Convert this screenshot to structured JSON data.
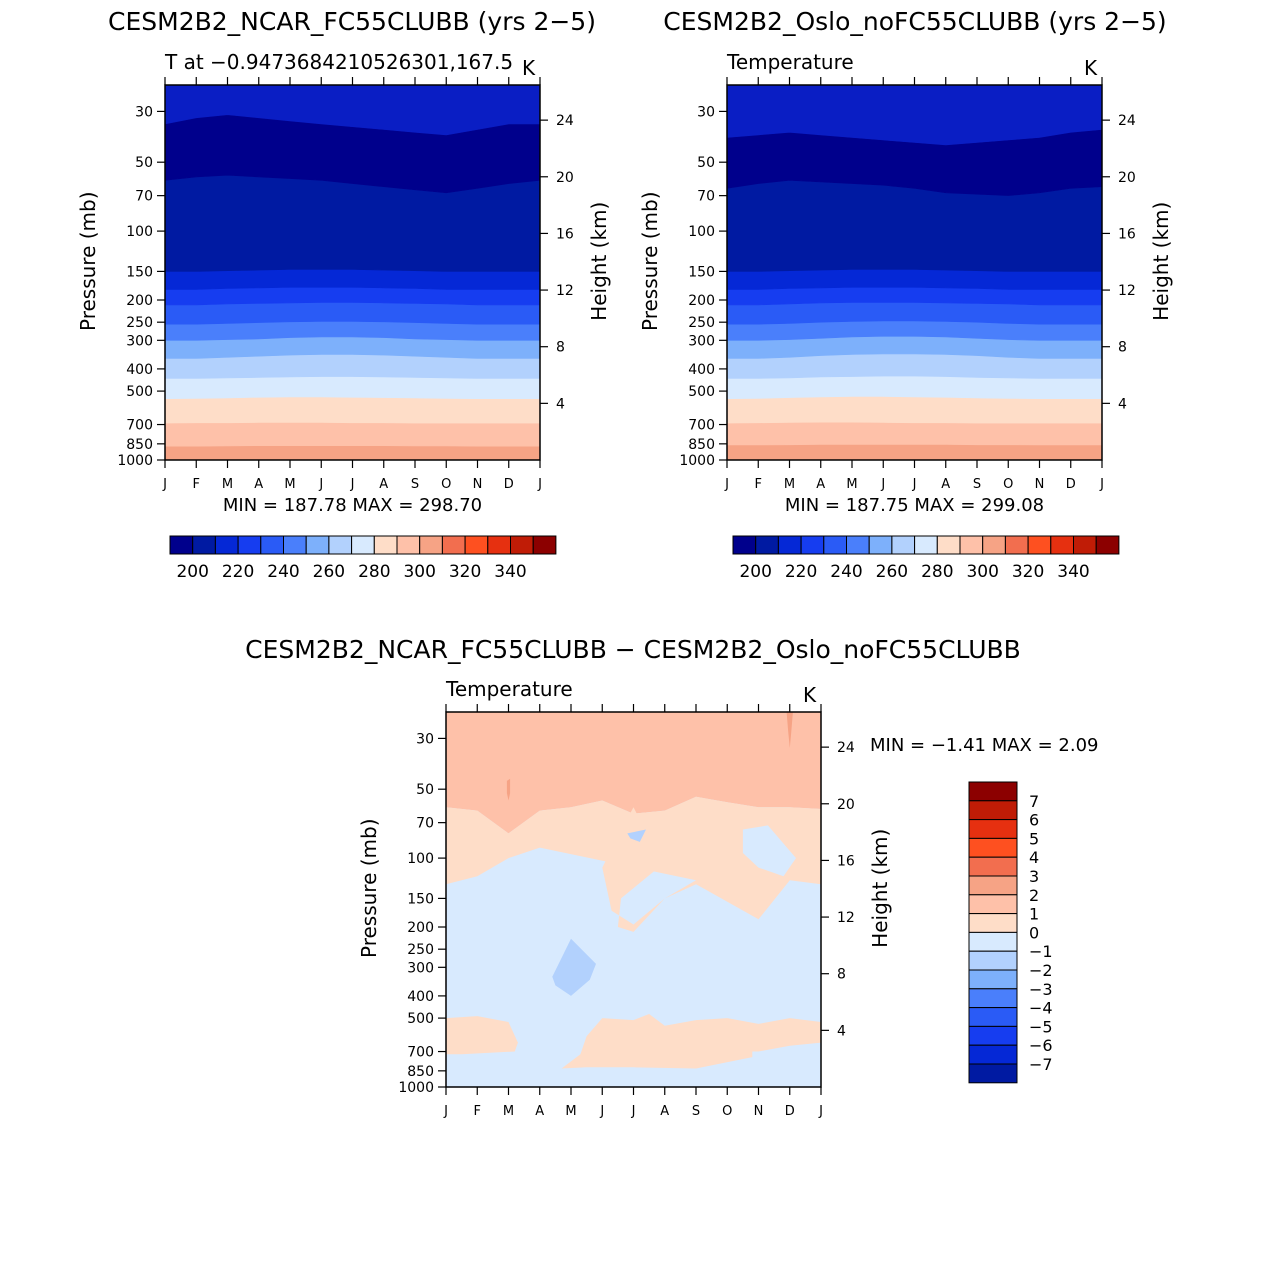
{
  "chart_data": [
    {
      "type": "heatmap",
      "title": "CESM2B2_NCAR_FC55CLUBB (yrs 2−5)",
      "subtitle_left": "T at −0.9473684210526301,167.5",
      "subtitle_right": "K",
      "ylabel": "Pressure (mb)",
      "ylabel_right": "Height (km)",
      "x_ticklabels": [
        "J",
        "F",
        "M",
        "A",
        "M",
        "J",
        "J",
        "A",
        "S",
        "O",
        "N",
        "D",
        "J"
      ],
      "y_ticks": [
        30,
        50,
        70,
        100,
        150,
        200,
        250,
        300,
        400,
        500,
        700,
        850,
        1000
      ],
      "y_right_ticks": [
        24,
        20,
        16,
        12,
        8,
        4
      ],
      "ylim": [
        1000,
        23
      ],
      "stats": "MIN = 187.78 MAX = 298.70",
      "contour_levels": [
        190,
        200,
        210,
        220,
        230,
        240,
        250,
        260,
        270,
        280,
        290,
        300,
        310,
        320,
        330,
        340,
        350
      ],
      "colorbar_ticks": [
        200,
        220,
        240,
        260,
        280,
        300,
        320,
        340
      ],
      "layer_tops_mb": [
        [
          1000,
          1000,
          1000,
          1000,
          1000,
          1000,
          1000,
          1000,
          1000,
          1000,
          1000,
          1000,
          1000
        ],
        [
          870,
          870,
          868,
          866,
          866,
          866,
          866,
          866,
          868,
          868,
          870,
          870,
          870
        ],
        [
          690,
          688,
          688,
          686,
          686,
          686,
          688,
          688,
          690,
          690,
          690,
          690,
          690
        ],
        [
          540,
          538,
          536,
          532,
          530,
          530,
          532,
          534,
          536,
          538,
          540,
          540,
          540
        ],
        [
          440,
          440,
          438,
          436,
          434,
          432,
          432,
          434,
          436,
          438,
          440,
          440,
          440
        ],
        [
          360,
          360,
          356,
          352,
          348,
          346,
          346,
          348,
          352,
          356,
          360,
          360,
          360
        ],
        [
          300,
          300,
          298,
          296,
          292,
          290,
          290,
          292,
          296,
          298,
          300,
          300,
          300
        ],
        [
          255,
          255,
          253,
          251,
          249,
          248,
          248,
          249,
          251,
          253,
          255,
          255,
          255
        ],
        [
          210,
          210,
          208,
          207,
          206,
          205,
          205,
          206,
          207,
          208,
          210,
          210,
          210
        ],
        [
          180,
          180,
          178,
          177,
          176,
          176,
          176,
          177,
          178,
          180,
          180,
          180,
          180
        ],
        [
          150,
          150,
          149,
          148,
          147,
          147,
          147,
          148,
          149,
          150,
          150,
          150,
          150
        ],
        [
          60,
          58,
          57,
          58,
          59,
          60,
          62,
          64,
          66,
          68,
          65,
          62,
          60
        ],
        [
          34,
          32,
          31,
          32,
          33,
          34,
          35,
          36,
          37,
          38,
          36,
          34,
          34
        ],
        [
          23,
          23,
          23,
          23,
          23,
          23,
          23,
          23,
          23,
          23,
          23,
          23,
          23
        ]
      ],
      "layer_colors": [
        "#f6a385",
        "#fec1a9",
        "#feddc8",
        "#d8eafe",
        "#b2d1fd",
        "#7db0fb",
        "#4a7ffb",
        "#2a5bf6",
        "#163df0",
        "#0528d6",
        "#001aa2",
        "#00008c",
        "#0a1ec4",
        "#0032e6"
      ]
    },
    {
      "type": "heatmap",
      "title": "CESM2B2_Oslo_noFC55CLUBB (yrs 2−5)",
      "subtitle_left": "Temperature",
      "subtitle_right": "K",
      "ylabel": "Pressure (mb)",
      "ylabel_right": "Height (km)",
      "x_ticklabels": [
        "J",
        "F",
        "M",
        "A",
        "M",
        "J",
        "J",
        "A",
        "S",
        "O",
        "N",
        "D",
        "J"
      ],
      "y_ticks": [
        30,
        50,
        70,
        100,
        150,
        200,
        250,
        300,
        400,
        500,
        700,
        850,
        1000
      ],
      "y_right_ticks": [
        24,
        20,
        16,
        12,
        8,
        4
      ],
      "ylim": [
        1000,
        23
      ],
      "stats": "MIN = 187.75 MAX = 299.08",
      "contour_levels": [
        190,
        200,
        210,
        220,
        230,
        240,
        250,
        260,
        270,
        280,
        290,
        300,
        310,
        320,
        330,
        340,
        350
      ],
      "colorbar_ticks": [
        200,
        220,
        240,
        260,
        280,
        300,
        320,
        340
      ],
      "layer_tops_mb": [
        [
          1000,
          1000,
          1000,
          1000,
          1000,
          1000,
          1000,
          1000,
          1000,
          1000,
          1000,
          1000,
          1000
        ],
        [
          860,
          860,
          858,
          856,
          856,
          856,
          856,
          856,
          858,
          858,
          860,
          860,
          860
        ],
        [
          690,
          688,
          686,
          684,
          684,
          686,
          688,
          688,
          690,
          690,
          690,
          690,
          690
        ],
        [
          540,
          538,
          534,
          530,
          528,
          528,
          530,
          532,
          536,
          538,
          540,
          540,
          540
        ],
        [
          440,
          440,
          438,
          434,
          432,
          430,
          430,
          432,
          436,
          438,
          440,
          440,
          440
        ],
        [
          360,
          360,
          356,
          350,
          346,
          344,
          344,
          346,
          350,
          356,
          360,
          360,
          360
        ],
        [
          300,
          300,
          298,
          294,
          290,
          288,
          288,
          290,
          294,
          298,
          300,
          300,
          300
        ],
        [
          255,
          255,
          253,
          250,
          248,
          247,
          247,
          248,
          250,
          253,
          255,
          255,
          255
        ],
        [
          210,
          210,
          208,
          206,
          205,
          205,
          205,
          206,
          207,
          208,
          210,
          210,
          210
        ],
        [
          180,
          180,
          178,
          177,
          176,
          176,
          176,
          177,
          178,
          180,
          180,
          180,
          180
        ],
        [
          150,
          150,
          149,
          148,
          147,
          147,
          147,
          148,
          149,
          150,
          150,
          150,
          150
        ],
        [
          65,
          62,
          60,
          61,
          62,
          63,
          65,
          68,
          69,
          70,
          68,
          65,
          64
        ],
        [
          39,
          38,
          37,
          38,
          39,
          40,
          41,
          42,
          41,
          40,
          39,
          37,
          36
        ],
        [
          23,
          23,
          23,
          23,
          23,
          23,
          23,
          23,
          23,
          23,
          23,
          23,
          23
        ]
      ],
      "layer_colors": [
        "#f6a385",
        "#fec1a9",
        "#feddc8",
        "#d8eafe",
        "#b2d1fd",
        "#7db0fb",
        "#4a7ffb",
        "#2a5bf6",
        "#163df0",
        "#0528d6",
        "#001aa2",
        "#00008c",
        "#0a1ec4",
        "#0032e6"
      ]
    },
    {
      "type": "heatmap",
      "title": "CESM2B2_NCAR_FC55CLUBB − CESM2B2_Oslo_noFC55CLUBB",
      "subtitle_left": "Temperature",
      "subtitle_right": "K",
      "ylabel": "Pressure (mb)",
      "ylabel_right": "Height (km)",
      "x_ticklabels": [
        "J",
        "F",
        "M",
        "A",
        "M",
        "J",
        "J",
        "A",
        "S",
        "O",
        "N",
        "D",
        "J"
      ],
      "y_ticks": [
        30,
        50,
        70,
        100,
        150,
        200,
        250,
        300,
        400,
        500,
        700,
        850,
        1000
      ],
      "y_right_ticks": [
        24,
        20,
        16,
        12,
        8,
        4
      ],
      "ylim": [
        1000,
        23
      ],
      "stats": "MIN =   −1.41  MAX =     2.09",
      "contour_levels": [
        -8,
        -7,
        -6,
        -5,
        -4,
        -3,
        -2,
        -1,
        0,
        1,
        2,
        3,
        4,
        5,
        6,
        7,
        8
      ],
      "colorbar_ticks": [
        7,
        6,
        5,
        4,
        3,
        2,
        1,
        0,
        -1,
        -2,
        -3,
        -4,
        -5,
        -6,
        -7
      ],
      "background_value": "0 to -1",
      "regions": [
        {
          "range": "1 to 2",
          "points": [
            [
              0,
              23
            ],
            [
              12,
              23
            ],
            [
              12,
              61
            ],
            [
              11,
              60
            ],
            [
              10,
              60
            ],
            [
              9,
              57
            ],
            [
              8,
              54
            ],
            [
              7,
              62
            ],
            [
              6,
              64
            ],
            [
              5,
              56
            ],
            [
              4,
              60
            ],
            [
              3,
              62
            ],
            [
              2,
              78
            ],
            [
              1,
              62
            ],
            [
              0,
              60
            ]
          ]
        },
        {
          "range": "0 to 1",
          "points": [
            [
              0,
              60
            ],
            [
              1,
              62
            ],
            [
              2,
              78
            ],
            [
              3,
              62
            ],
            [
              4,
              60
            ],
            [
              5,
              56
            ],
            [
              6,
              64
            ],
            [
              7,
              62
            ],
            [
              8,
              54
            ],
            [
              9,
              57
            ],
            [
              10,
              60
            ],
            [
              11,
              60
            ],
            [
              12,
              61
            ],
            [
              12,
              130
            ],
            [
              11,
              125
            ],
            [
              10,
              185
            ],
            [
              9,
              155
            ],
            [
              8,
              130
            ],
            [
              7,
              150
            ],
            [
              6,
              195
            ],
            [
              5.3,
              170
            ],
            [
              5,
              110
            ],
            [
              5.5,
              80
            ],
            [
              6,
              60
            ],
            [
              6.3,
              72
            ],
            [
              7,
              80
            ],
            [
              6.8,
              110
            ],
            [
              5.6,
              150
            ],
            [
              5.5,
              200
            ],
            [
              6,
              210
            ],
            [
              7,
              150
            ],
            [
              8,
              125
            ],
            [
              3,
              90
            ],
            [
              2,
              100
            ],
            [
              1,
              120
            ],
            [
              0,
              130
            ]
          ]
        },
        {
          "range": "0 to 1",
          "points": [
            [
              0,
              500
            ],
            [
              1,
              490
            ],
            [
              2,
              520
            ],
            [
              2.3,
              640
            ],
            [
              2.2,
              700
            ],
            [
              0.5,
              720
            ],
            [
              0,
              720
            ]
          ]
        },
        {
          "range": "0 to 1",
          "points": [
            [
              3.7,
              830
            ],
            [
              4.3,
              720
            ],
            [
              4.5,
              600
            ],
            [
              5,
              500
            ],
            [
              6,
              510
            ],
            [
              6.5,
              480
            ],
            [
              7,
              540
            ],
            [
              8,
              510
            ],
            [
              9,
              500
            ],
            [
              10,
              530
            ],
            [
              11,
              500
            ],
            [
              12,
              520
            ],
            [
              12,
              640
            ],
            [
              11,
              660
            ],
            [
              10,
              700
            ],
            [
              9.8,
              700
            ],
            [
              9.8,
              740
            ],
            [
              8,
              830
            ],
            [
              6,
              820
            ],
            [
              4.5,
              820
            ]
          ]
        },
        {
          "range": "-1 to 0",
          "points": [
            [
              9.5,
              75
            ],
            [
              10.3,
              72
            ],
            [
              11.2,
              100
            ],
            [
              10.8,
              120
            ],
            [
              10,
              110
            ],
            [
              9.5,
              95
            ]
          ]
        },
        {
          "range": "-1 to -2",
          "points": [
            [
              3.4,
              330
            ],
            [
              4,
              225
            ],
            [
              4.8,
              290
            ],
            [
              4.6,
              340
            ],
            [
              4,
              400
            ],
            [
              3.5,
              360
            ]
          ]
        },
        {
          "range": "-1 to -2",
          "points": [
            [
              5.8,
              78
            ],
            [
              6.4,
              75
            ],
            [
              6.2,
              85
            ],
            [
              5.9,
              82
            ]
          ]
        },
        {
          "range": "2 to 3",
          "points": [
            [
              1.95,
              46
            ],
            [
              2.05,
              45
            ],
            [
              2.05,
              52
            ],
            [
              2,
              56
            ],
            [
              1.95,
              52
            ]
          ]
        },
        {
          "range": "2 to 3",
          "points": [
            [
              10.9,
              23
            ],
            [
              11.1,
              23
            ],
            [
              11.05,
              28
            ],
            [
              11,
              33
            ],
            [
              10.95,
              28
            ]
          ]
        }
      ]
    }
  ],
  "colors": {
    "temp_colorbar": [
      "#00008c",
      "#001aa2",
      "#0528d6",
      "#163df0",
      "#2a5bf6",
      "#4a7ffb",
      "#7db0fb",
      "#b2d1fd",
      "#d8eafe",
      "#feddc8",
      "#fec1a9",
      "#f6a385",
      "#f26e4f",
      "#fe5020",
      "#e63010",
      "#c01c06",
      "#8c0000"
    ],
    "diff_colorbar_top_to_bottom": [
      "#8c0000",
      "#c01c06",
      "#e63010",
      "#fe5020",
      "#f26e4f",
      "#f6a385",
      "#fec1a9",
      "#feddc8",
      "#d8eafe",
      "#b2d1fd",
      "#7db0fb",
      "#4a7ffb",
      "#2a5bf6",
      "#163df0",
      "#0528d6",
      "#001aa2"
    ],
    "diff_region_fill": {
      "-1 to -2": "#b2d1fd",
      "-1 to 0": "#d8eafe",
      "0 to -1": "#d8eafe",
      "0 to 1": "#feddc8",
      "1 to 2": "#fec1a9",
      "2 to 3": "#f6a385"
    }
  }
}
